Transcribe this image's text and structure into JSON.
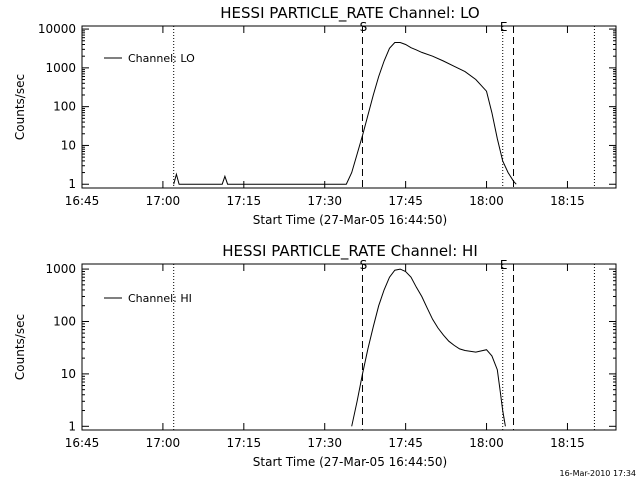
{
  "footer": {
    "timestamp": "16-Mar-2010 17:34"
  },
  "chart_data": [
    {
      "type": "line",
      "title": "HESSI PARTICLE_RATE Channel: LO",
      "xlabel": "Start Time (27-Mar-05 16:44:50)",
      "ylabel": "Counts/sec",
      "yscale": "log",
      "xlim": [
        "16:45",
        "18:24"
      ],
      "ylim": [
        0.8,
        12000
      ],
      "x_ticks": [
        "16:45",
        "17:00",
        "17:15",
        "17:30",
        "17:45",
        "18:00",
        "18:15"
      ],
      "y_ticks": [
        "1",
        "10",
        "100",
        "1000",
        "10000"
      ],
      "grid": false,
      "legend": {
        "position": "top-left",
        "entries": [
          "Channel: LO"
        ]
      },
      "vertical_markers": [
        {
          "time": "17:02",
          "style": "dotted",
          "label": ""
        },
        {
          "time": "17:37",
          "style": "dashed",
          "label": "S"
        },
        {
          "time": "18:03",
          "style": "dotted",
          "label": "E"
        },
        {
          "time": "18:05",
          "style": "dashed",
          "label": ""
        },
        {
          "time": "18:20",
          "style": "dotted",
          "label": ""
        }
      ],
      "series": [
        {
          "name": "Channel: LO",
          "x": [
            "17:02",
            "17:02:30",
            "17:03",
            "17:11",
            "17:11:30",
            "17:12",
            "17:34",
            "17:35",
            "17:36",
            "17:37",
            "17:38",
            "17:39",
            "17:40",
            "17:41",
            "17:42",
            "17:43",
            "17:44",
            "17:45",
            "17:46",
            "17:47",
            "17:48",
            "17:50",
            "17:52",
            "17:54",
            "17:56",
            "17:58",
            "18:00",
            "18:01",
            "18:02",
            "18:03",
            "18:04",
            "18:05",
            "18:05:30"
          ],
          "y": [
            1,
            1.8,
            1,
            1,
            1.6,
            1,
            1,
            2,
            6,
            18,
            60,
            200,
            600,
            1500,
            3200,
            4500,
            4500,
            4000,
            3300,
            2900,
            2500,
            2000,
            1500,
            1100,
            800,
            500,
            250,
            70,
            15,
            4,
            2,
            1.2,
            1
          ]
        }
      ]
    },
    {
      "type": "line",
      "title": "HESSI PARTICLE_RATE Channel: HI",
      "xlabel": "Start Time (27-Mar-05 16:44:50)",
      "ylabel": "Counts/sec",
      "yscale": "log",
      "xlim": [
        "16:45",
        "18:24"
      ],
      "ylim": [
        0.85,
        1250
      ],
      "x_ticks": [
        "16:45",
        "17:00",
        "17:15",
        "17:30",
        "17:45",
        "18:00",
        "18:15"
      ],
      "y_ticks": [
        "1",
        "10",
        "100",
        "1000"
      ],
      "grid": false,
      "legend": {
        "position": "top-left",
        "entries": [
          "Channel: HI"
        ]
      },
      "vertical_markers": [
        {
          "time": "17:02",
          "style": "dotted",
          "label": ""
        },
        {
          "time": "17:37",
          "style": "dashed",
          "label": "S"
        },
        {
          "time": "18:03",
          "style": "dotted",
          "label": "E"
        },
        {
          "time": "18:05",
          "style": "dashed",
          "label": ""
        },
        {
          "time": "18:20",
          "style": "dotted",
          "label": ""
        }
      ],
      "series": [
        {
          "name": "Channel: HI",
          "x": [
            "17:35",
            "17:36",
            "17:37",
            "17:38",
            "17:39",
            "17:40",
            "17:41",
            "17:42",
            "17:43",
            "17:44",
            "17:45",
            "17:46",
            "17:47",
            "17:48",
            "17:49",
            "17:50",
            "17:51",
            "17:52",
            "17:53",
            "17:54",
            "17:55",
            "17:56",
            "17:58",
            "18:00",
            "18:01",
            "18:02",
            "18:02:30",
            "18:03",
            "18:03:30"
          ],
          "y": [
            1,
            3,
            10,
            30,
            80,
            200,
            400,
            700,
            950,
            1000,
            900,
            700,
            450,
            300,
            180,
            110,
            75,
            55,
            42,
            35,
            30,
            28,
            26,
            29,
            22,
            12,
            5,
            2,
            1
          ]
        }
      ]
    }
  ]
}
